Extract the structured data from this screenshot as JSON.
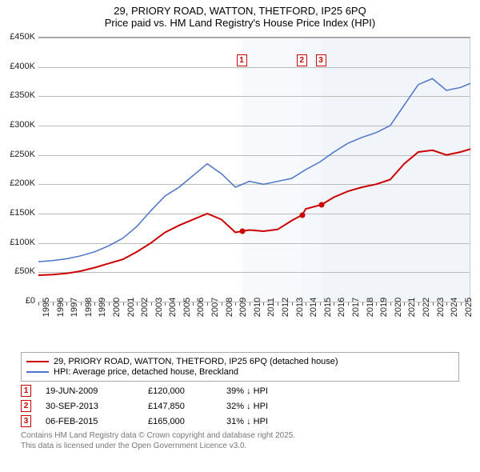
{
  "title": {
    "line1": "29, PRIORY ROAD, WATTON, THETFORD, IP25 6PQ",
    "line2": "Price paid vs. HM Land Registry's House Price Index (HPI)"
  },
  "chart": {
    "type": "line",
    "background_color": "#ffffff",
    "shaded_band_color": "#e8eef7",
    "grid_color": "#bbbbbb",
    "xlim": [
      1995,
      2025.7
    ],
    "ylim": [
      0,
      450000
    ],
    "ytick_step": 50000,
    "ytick_labels": [
      "£0",
      "£50K",
      "£100K",
      "£150K",
      "£200K",
      "£250K",
      "£300K",
      "£350K",
      "£400K",
      "£450K"
    ],
    "xtick_years": [
      1995,
      1996,
      1997,
      1998,
      1999,
      2000,
      2001,
      2002,
      2003,
      2004,
      2005,
      2006,
      2007,
      2008,
      2009,
      2010,
      2011,
      2012,
      2013,
      2014,
      2015,
      2016,
      2017,
      2018,
      2019,
      2020,
      2021,
      2022,
      2023,
      2024,
      2025
    ],
    "shaded_bands": [
      [
        2009.47,
        2013.75
      ],
      [
        2013.75,
        2015.1
      ],
      [
        2015.1,
        2025.7
      ]
    ],
    "series": [
      {
        "name": "property",
        "label": "29, PRIORY ROAD, WATTON, THETFORD, IP25 6PQ (detached house)",
        "color": "#cc0000",
        "line_width": 2,
        "points": [
          [
            1995,
            45000
          ],
          [
            1996,
            46000
          ],
          [
            1997,
            48000
          ],
          [
            1998,
            52000
          ],
          [
            1999,
            58000
          ],
          [
            2000,
            65000
          ],
          [
            2001,
            72000
          ],
          [
            2002,
            85000
          ],
          [
            2003,
            100000
          ],
          [
            2004,
            118000
          ],
          [
            2005,
            130000
          ],
          [
            2006,
            140000
          ],
          [
            2007,
            150000
          ],
          [
            2008,
            140000
          ],
          [
            2009,
            118000
          ],
          [
            2009.47,
            120000
          ],
          [
            2010,
            122000
          ],
          [
            2011,
            120000
          ],
          [
            2012,
            123000
          ],
          [
            2013,
            138000
          ],
          [
            2013.75,
            147850
          ],
          [
            2014,
            158000
          ],
          [
            2015.1,
            165000
          ],
          [
            2016,
            178000
          ],
          [
            2017,
            188000
          ],
          [
            2018,
            195000
          ],
          [
            2019,
            200000
          ],
          [
            2020,
            208000
          ],
          [
            2021,
            235000
          ],
          [
            2022,
            255000
          ],
          [
            2023,
            258000
          ],
          [
            2024,
            250000
          ],
          [
            2025,
            255000
          ],
          [
            2025.7,
            260000
          ]
        ]
      },
      {
        "name": "hpi",
        "label": "HPI: Average price, detached house, Breckland",
        "color": "#4a74c9",
        "line_width": 1.5,
        "points": [
          [
            1995,
            68000
          ],
          [
            1996,
            70000
          ],
          [
            1997,
            73000
          ],
          [
            1998,
            78000
          ],
          [
            1999,
            85000
          ],
          [
            2000,
            95000
          ],
          [
            2001,
            108000
          ],
          [
            2002,
            128000
          ],
          [
            2003,
            155000
          ],
          [
            2004,
            180000
          ],
          [
            2005,
            195000
          ],
          [
            2006,
            215000
          ],
          [
            2007,
            235000
          ],
          [
            2008,
            218000
          ],
          [
            2009,
            195000
          ],
          [
            2010,
            205000
          ],
          [
            2011,
            200000
          ],
          [
            2012,
            205000
          ],
          [
            2013,
            210000
          ],
          [
            2014,
            225000
          ],
          [
            2015,
            238000
          ],
          [
            2016,
            255000
          ],
          [
            2017,
            270000
          ],
          [
            2018,
            280000
          ],
          [
            2019,
            288000
          ],
          [
            2020,
            300000
          ],
          [
            2021,
            335000
          ],
          [
            2022,
            370000
          ],
          [
            2023,
            380000
          ],
          [
            2024,
            360000
          ],
          [
            2025,
            365000
          ],
          [
            2025.7,
            372000
          ]
        ]
      }
    ],
    "sale_markers": [
      {
        "n": "1",
        "year": 2009.47,
        "price": 120000,
        "box_y": 410000
      },
      {
        "n": "2",
        "year": 2013.75,
        "price": 147850,
        "box_y": 410000
      },
      {
        "n": "3",
        "year": 2015.1,
        "price": 165000,
        "box_y": 410000
      }
    ]
  },
  "legend": {
    "items": [
      {
        "color": "#cc0000",
        "width": 2,
        "label": "29, PRIORY ROAD, WATTON, THETFORD, IP25 6PQ (detached house)"
      },
      {
        "color": "#4a74c9",
        "width": 1.5,
        "label": "HPI: Average price, detached house, Breckland"
      }
    ]
  },
  "sales": [
    {
      "n": "1",
      "date": "19-JUN-2009",
      "price": "£120,000",
      "hpi": "39% ↓ HPI"
    },
    {
      "n": "2",
      "date": "30-SEP-2013",
      "price": "£147,850",
      "hpi": "32% ↓ HPI"
    },
    {
      "n": "3",
      "date": "06-FEB-2015",
      "price": "£165,000",
      "hpi": "31% ↓ HPI"
    }
  ],
  "footer": {
    "line1": "Contains HM Land Registry data © Crown copyright and database right 2025.",
    "line2": "This data is licensed under the Open Government Licence v3.0."
  }
}
